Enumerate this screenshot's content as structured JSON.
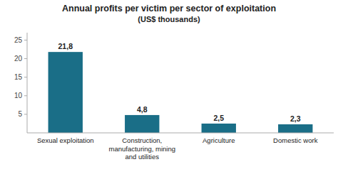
{
  "chart_data": {
    "type": "bar",
    "title": "Annual profits per victim per sector of exploitation",
    "subtitle": "(US$ thousands)",
    "categories": [
      "Sexual exploitation",
      "Construction,\nmanufacturing, mining\nand utilities",
      "Agriculture",
      "Domestic work"
    ],
    "values": [
      21.8,
      4.8,
      2.5,
      2.3
    ],
    "value_labels": [
      "21,8",
      "4,8",
      "2,5",
      "2,3"
    ],
    "data_labels": true,
    "color": "#1a6e87",
    "ylim": [
      0,
      27
    ],
    "yticks": [
      5,
      10,
      15,
      20,
      25
    ],
    "grid": false
  }
}
